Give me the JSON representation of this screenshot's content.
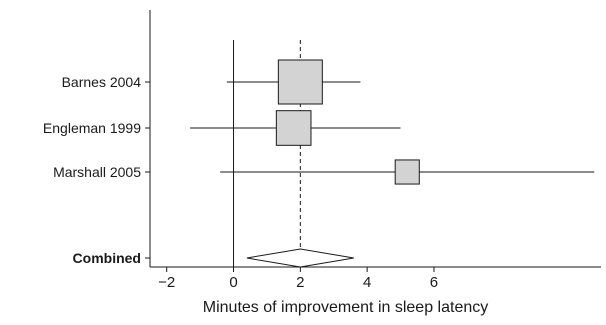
{
  "chart_data": {
    "type": "forest",
    "xlabel": "Minutes of improvement in sleep latency",
    "xlim": [
      -2.5,
      11.0
    ],
    "x_ticks": [
      -2,
      0,
      2,
      4,
      6
    ],
    "x_tick_labels": [
      "−2",
      "0",
      "2",
      "4",
      "6"
    ],
    "studies": [
      {
        "label": "Barnes 2004",
        "estimate": 2.0,
        "ci_low": -0.2,
        "ci_high": 3.8,
        "weight": 1.0
      },
      {
        "label": "Engleman 1999",
        "estimate": 1.8,
        "ci_low": -1.3,
        "ci_high": 5.0,
        "weight": 0.62
      },
      {
        "label": "Marshall 2005",
        "estimate": 5.2,
        "ci_low": -0.4,
        "ci_high": 10.8,
        "weight": 0.3
      }
    ],
    "combined": {
      "label": "Combined",
      "estimate": 2.0,
      "ci_low": 0.4,
      "ci_high": 3.6
    },
    "reference_line": 0,
    "pooled_line": 2.0,
    "grid": false,
    "colors": {
      "box_fill": "#d3d3d3",
      "stroke": "#1a1a1a",
      "diamond_fill": "#ffffff"
    }
  }
}
